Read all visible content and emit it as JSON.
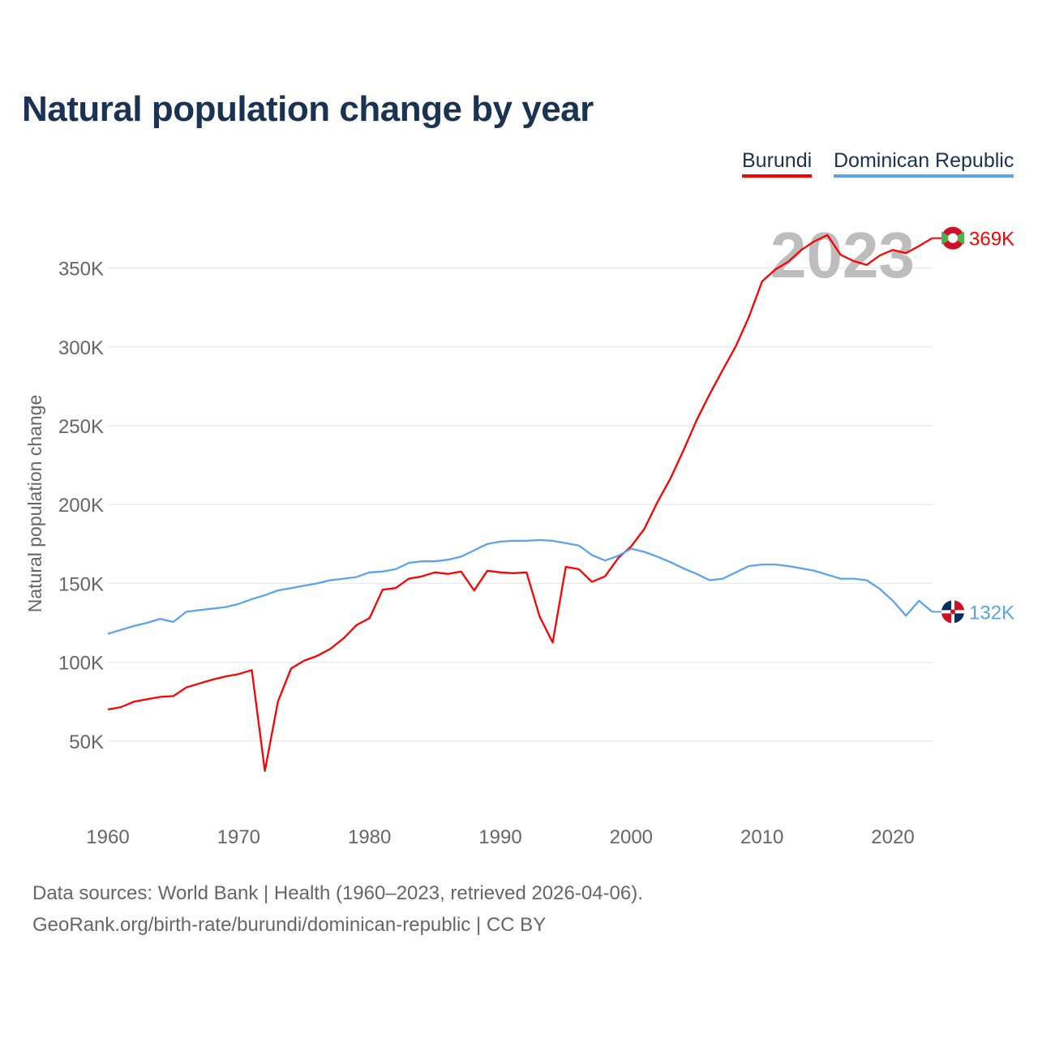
{
  "chart_data": {
    "type": "line",
    "title": "Natural population change by year",
    "ylabel": "Natural population change",
    "xlabel": "",
    "xlim": [
      1960,
      2023
    ],
    "ylim": [
      0,
      370000
    ],
    "x_ticks": [
      1960,
      1970,
      1980,
      1990,
      2000,
      2010,
      2020
    ],
    "y_ticks": [
      50000,
      100000,
      150000,
      200000,
      250000,
      300000,
      350000
    ],
    "y_tick_labels": [
      "50K",
      "100K",
      "150K",
      "200K",
      "250K",
      "300K",
      "350K"
    ],
    "grid": true,
    "legend_position": "top-right",
    "year_watermark": "2023",
    "x": [
      1960,
      1961,
      1962,
      1963,
      1964,
      1965,
      1966,
      1967,
      1968,
      1969,
      1970,
      1971,
      1972,
      1973,
      1974,
      1975,
      1976,
      1977,
      1978,
      1979,
      1980,
      1981,
      1982,
      1983,
      1984,
      1985,
      1986,
      1987,
      1988,
      1989,
      1990,
      1991,
      1992,
      1993,
      1994,
      1995,
      1996,
      1997,
      1998,
      1999,
      2000,
      2001,
      2002,
      2003,
      2004,
      2005,
      2006,
      2007,
      2008,
      2009,
      2010,
      2011,
      2012,
      2013,
      2014,
      2015,
      2016,
      2017,
      2018,
      2019,
      2020,
      2021,
      2022,
      2023
    ],
    "series": [
      {
        "name": "Burundi",
        "color": "#ff0000",
        "end_label": "369K",
        "values": [
          70,
          71.5,
          75,
          76.5,
          78,
          78.5,
          84,
          86.5,
          89,
          91,
          92.5,
          95,
          31,
          75,
          96,
          101,
          104,
          108.5,
          115,
          123.5,
          128,
          146,
          147,
          153,
          154.5,
          157,
          156,
          157.5,
          145.5,
          158,
          157,
          156.5,
          157,
          129,
          112.5,
          160.5,
          159,
          151,
          154.5,
          166,
          173.5,
          184.5,
          201.5,
          216.5,
          234.5,
          253.5,
          270,
          285.5,
          300.5,
          319,
          341.5,
          349,
          354,
          361.5,
          367,
          371,
          358.5,
          354.5,
          352,
          358,
          361.5,
          359.5,
          364,
          369
        ],
        "unit": "thousands"
      },
      {
        "name": "Dominican Republic",
        "color": "#5ba4ec",
        "end_label": "132K",
        "values": [
          118,
          120.5,
          123,
          125,
          127.5,
          125.5,
          132,
          133,
          134,
          135,
          137,
          140,
          142.5,
          145.5,
          147,
          148.5,
          150,
          152,
          153,
          154,
          157,
          157.5,
          159,
          163,
          164,
          164,
          165,
          167,
          171,
          175,
          176.5,
          177,
          177,
          177.5,
          177,
          175.5,
          174,
          168,
          164.5,
          167.5,
          172,
          170,
          167,
          163.5,
          159.5,
          156,
          152,
          153,
          157,
          161,
          162,
          162,
          161,
          159.5,
          158,
          155.5,
          153,
          153,
          152,
          146.5,
          139,
          129.5,
          139,
          132
        ],
        "unit": "thousands"
      }
    ]
  },
  "footer": {
    "line1": "Data sources: World Bank | Health (1960–2023, retrieved 2026-04-06).",
    "line2": "GeoRank.org/birth-rate/burundi/dominican-republic | CC BY"
  }
}
